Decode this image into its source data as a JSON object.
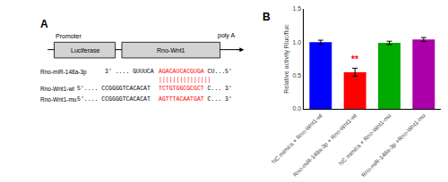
{
  "chart_data": {
    "type": "bar",
    "categories": [
      "NC mimics + Rno-Wnt1-wt",
      "Rno-miR-148a-3p + Rno-Wnt1-wt",
      "NC mimics + Rno-Wnt1-mu",
      "Rno-miR-148a-3p +Rno-Wnt1-mu"
    ],
    "values": [
      1.0,
      0.55,
      0.99,
      1.04
    ],
    "errors": [
      0.03,
      0.06,
      0.025,
      0.03
    ],
    "colors": [
      "#0000FF",
      "#FF0000",
      "#00AA00",
      "#AA00AA"
    ],
    "ylabel": "Relative activity Rluc/fluc",
    "ylim": [
      0.0,
      1.5
    ],
    "yticks": [
      {
        "value": 0,
        "label": "0.0"
      },
      0.5,
      {
        "value": 1,
        "label": "1.0"
      },
      1.5
    ],
    "grid": false,
    "annotations": [
      {
        "text": "A"
      },
      {
        "text": "B"
      },
      {
        "text": "Promoter"
      },
      {
        "text": "poly A"
      },
      {
        "text": "Luciferase"
      },
      {
        "text": "Rno-Wnt1"
      },
      {
        "text": "Rno-miR-148a-3p",
        "parts": [
          {
            "text": "3' .... GUUUCA"
          },
          {
            "text": "AGACAUCACGUGA",
            "color": "red"
          },
          {
            "text": " CU...5'"
          }
        ]
      },
      {
        "parts": [
          {
            "text": "|||||||||||||||",
            "color": "red"
          }
        ]
      },
      {
        "text": "Rno-Wnt1-wt",
        "parts": [
          {
            "text": "5'.... CCGGGGTCACACAT "
          },
          {
            "text": "TCTGTGGCGCGCT",
            "color": "red"
          },
          {
            "text": " C... 3'"
          }
        ]
      },
      {
        "text": "Rno-Wnt1-mu",
        "parts": [
          {
            "text": "5'.... CCGGGGTCACACAT "
          },
          {
            "text": "AGTTTACAATGAT",
            "color": "red"
          },
          {
            "text": " C... 3'"
          }
        ]
      },
      {
        "text": "**",
        "x": 1,
        "color": "red"
      }
    ]
  }
}
